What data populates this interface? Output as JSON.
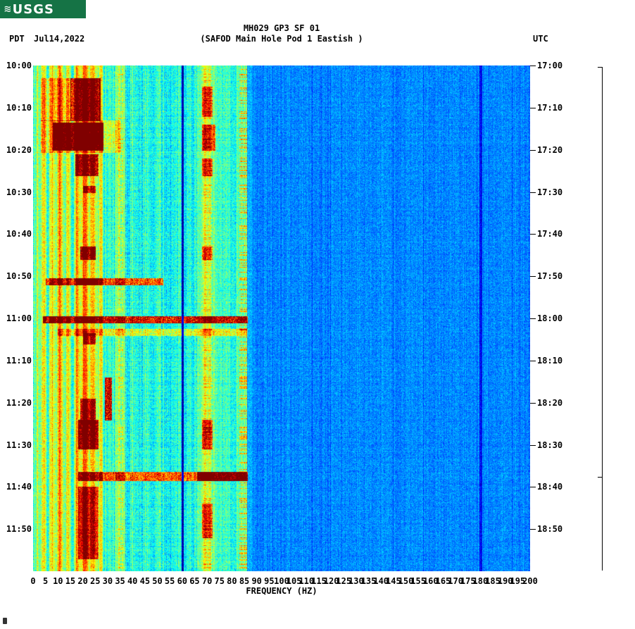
{
  "colors": {
    "background": "#ffffff",
    "text": "#000000",
    "logo_bg": "#157345",
    "logo_text": "#ffffff"
  },
  "header": {
    "logo_text": "USGS",
    "left_tz": "PDT",
    "date": "Jul14,2022",
    "right_tz": "UTC",
    "title_line1": "MH029 GP3 SF 01",
    "title_line2": "(SAFOD Main Hole Pod 1 Eastish )"
  },
  "chart_data": {
    "type": "heatmap",
    "title": "MH029 GP3 SF 01",
    "subtitle": "(SAFOD Main Hole Pod 1 Eastish )",
    "xlabel": "FREQUENCY (HZ)",
    "x_range": [
      0,
      200
    ],
    "x_tick_step": 5,
    "x_ticks": [
      0,
      5,
      10,
      15,
      20,
      25,
      30,
      35,
      40,
      45,
      50,
      55,
      60,
      65,
      70,
      75,
      80,
      85,
      90,
      95,
      100,
      105,
      110,
      115,
      120,
      125,
      130,
      135,
      140,
      145,
      150,
      155,
      160,
      165,
      170,
      175,
      180,
      185,
      190,
      195,
      200
    ],
    "y_left_tz": "PDT",
    "y_right_tz": "UTC",
    "date": "Jul14,2022",
    "y_left_ticks": [
      "10:00",
      "10:10",
      "10:20",
      "10:30",
      "10:40",
      "10:50",
      "11:00",
      "11:10",
      "11:20",
      "11:30",
      "11:40",
      "11:50"
    ],
    "y_right_ticks": [
      "17:00",
      "17:10",
      "17:20",
      "17:30",
      "17:40",
      "17:50",
      "18:00",
      "18:10",
      "18:20",
      "18:30",
      "18:40",
      "18:50"
    ],
    "duration_minutes": 120,
    "colormap": "jet",
    "legend": "none",
    "grid": "off",
    "background_level": 0.26,
    "active_band_hz": [
      0,
      86
    ],
    "mains_lines_hz": [
      60,
      180
    ],
    "events": [
      {
        "t0": 3,
        "t1": 13,
        "f0": 15,
        "f1": 27,
        "amp": 0.45
      },
      {
        "t0": 3,
        "t1": 13,
        "f0": 3,
        "f1": 15,
        "amp": 0.15
      },
      {
        "t0": 13.5,
        "t1": 20,
        "f0": 8,
        "f1": 28,
        "amp": 0.5
      },
      {
        "t0": 13,
        "t1": 20.5,
        "f0": 3,
        "f1": 35,
        "amp": 0.15
      },
      {
        "t0": 21,
        "t1": 26,
        "f0": 17,
        "f1": 26,
        "amp": 0.38
      },
      {
        "t0": 28.5,
        "t1": 30,
        "f0": 20,
        "f1": 25,
        "amp": 0.3
      },
      {
        "t0": 5,
        "t1": 12,
        "f0": 68,
        "f1": 72,
        "amp": 0.28
      },
      {
        "t0": 14,
        "t1": 20,
        "f0": 68,
        "f1": 73,
        "amp": 0.32
      },
      {
        "t0": 22,
        "t1": 26,
        "f0": 68,
        "f1": 72,
        "amp": 0.28
      },
      {
        "t0": 43,
        "t1": 46,
        "f0": 19,
        "f1": 25,
        "amp": 0.4
      },
      {
        "t0": 43,
        "t1": 46,
        "f0": 68,
        "f1": 72,
        "amp": 0.28
      },
      {
        "t0": 50.5,
        "t1": 52,
        "f0": 5,
        "f1": 52,
        "amp": 0.4
      },
      {
        "t0": 50.5,
        "t1": 52,
        "f0": 18,
        "f1": 26,
        "amp": 0.25
      },
      {
        "t0": 59.5,
        "t1": 61,
        "f0": 4,
        "f1": 86,
        "amp": 0.5
      },
      {
        "t0": 62.5,
        "t1": 64,
        "f0": 10,
        "f1": 86,
        "amp": 0.18
      },
      {
        "t0": 63.5,
        "t1": 66,
        "f0": 20,
        "f1": 25,
        "amp": 0.3
      },
      {
        "t0": 74,
        "t1": 84,
        "f0": 29,
        "f1": 31.5,
        "amp": 0.5
      },
      {
        "t0": 79,
        "t1": 85,
        "f0": 19,
        "f1": 25,
        "amp": 0.32
      },
      {
        "t0": 84,
        "t1": 91,
        "f0": 18,
        "f1": 26,
        "amp": 0.42
      },
      {
        "t0": 84,
        "t1": 91,
        "f0": 68,
        "f1": 72,
        "amp": 0.3
      },
      {
        "t0": 96.5,
        "t1": 98.5,
        "f0": 18,
        "f1": 86,
        "amp": 0.38
      },
      {
        "t0": 96.5,
        "t1": 98.5,
        "f0": 66,
        "f1": 86,
        "amp": 0.25
      },
      {
        "t0": 100,
        "t1": 117,
        "f0": 18,
        "f1": 26,
        "amp": 0.3
      },
      {
        "t0": 104,
        "t1": 112,
        "f0": 68,
        "f1": 72,
        "amp": 0.28
      }
    ]
  }
}
